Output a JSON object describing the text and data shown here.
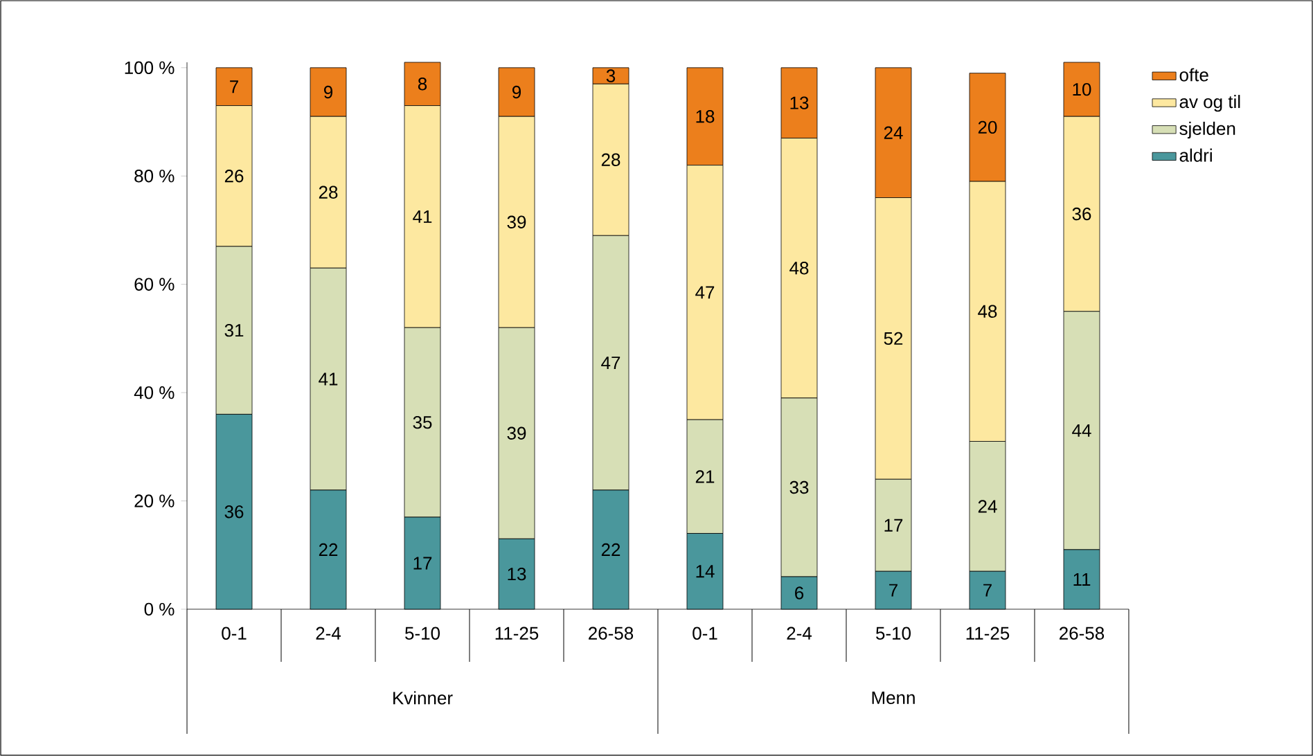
{
  "chart_data": {
    "type": "bar",
    "stacked": true,
    "data_labels": true,
    "legend": "top right",
    "categories": [
      "0-1",
      "2-4",
      "5-10",
      "11-25",
      "26-58",
      "0-1",
      "2-4",
      "5-10",
      "11-25",
      "26-58"
    ],
    "annotations": [
      "Kvinner",
      "Menn"
    ],
    "ylim": [
      0,
      101
    ],
    "yticks": [
      {
        "value": 0,
        "label": "0 %"
      },
      {
        "value": 20,
        "label": "20 %"
      },
      {
        "value": 40,
        "label": "40 %"
      },
      {
        "value": 60,
        "label": "60 %"
      },
      {
        "value": 80,
        "label": "80 %"
      },
      {
        "value": 100,
        "label": "100 %"
      }
    ],
    "series": [
      {
        "name": "aldri",
        "color": "#4a979c",
        "values": [
          36,
          22,
          17,
          13,
          22,
          14,
          6,
          7,
          7,
          11
        ]
      },
      {
        "name": "sjelden",
        "color": "#d7dfb6",
        "values": [
          31,
          41,
          35,
          39,
          47,
          21,
          33,
          17,
          24,
          44
        ]
      },
      {
        "name": "av og til",
        "color": "#fde8a0",
        "values": [
          26,
          28,
          41,
          39,
          28,
          47,
          48,
          52,
          48,
          36
        ]
      },
      {
        "name": "ofte",
        "color": "#ec7f1c",
        "values": [
          7,
          9,
          8,
          9,
          3,
          18,
          13,
          24,
          20,
          10
        ]
      }
    ]
  }
}
